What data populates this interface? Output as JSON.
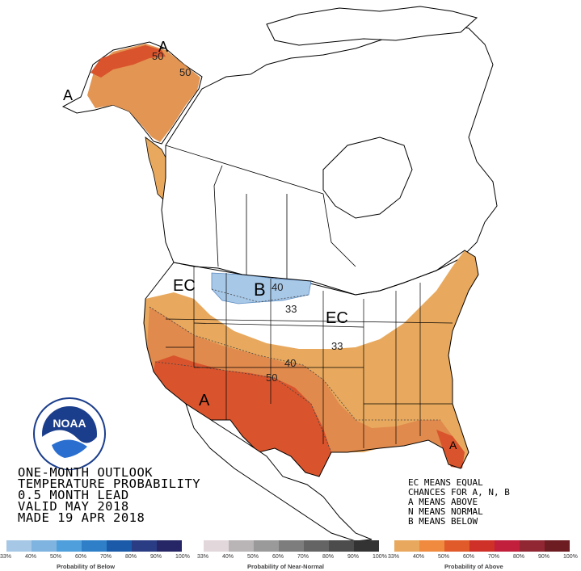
{
  "title_lines": [
    "ONE-MONTH OUTLOOK",
    "TEMPERATURE PROBABILITY",
    "0.5 MONTH LEAD",
    "VALID MAY 2018",
    "MADE 19 APR 2018"
  ],
  "notes": [
    "EC MEANS EQUAL",
    "CHANCES FOR A, N, B",
    "A MEANS ABOVE",
    "N MEANS NORMAL",
    "B MEANS BELOW"
  ],
  "map_labels": {
    "ec_west": "EC",
    "ec_central": "EC",
    "below": "B",
    "above_sw": "A",
    "above_alaska": "A",
    "above_alaska_w": "A",
    "above_fl": "A",
    "alaska_50a": "50",
    "alaska_50b": "50",
    "contour_33_n": "33",
    "contour_33_c": "33",
    "contour_40_b": "40",
    "contour_40": "40",
    "contour_50": "50"
  },
  "legend": {
    "below": {
      "title": "Probability of Below",
      "ticks": [
        "33%",
        "40%",
        "50%",
        "60%",
        "70%",
        "80%",
        "90%",
        "100%"
      ],
      "colors": [
        "#a6c8e6",
        "#7fb3e0",
        "#4f9fdc",
        "#2e7fc8",
        "#1b5aa8",
        "#2a3c84",
        "#262565"
      ]
    },
    "normal": {
      "title": "Probability of Near-Normal",
      "ticks": [
        "33%",
        "40%",
        "50%",
        "60%",
        "70%",
        "80%",
        "90%",
        "100%"
      ],
      "colors": [
        "#e2d8dc",
        "#b9b4b6",
        "#9a9a9a",
        "#7d7d7d",
        "#646464",
        "#4c4c4c",
        "#333333"
      ]
    },
    "above": {
      "title": "Probability of Above",
      "ticks": [
        "33%",
        "40%",
        "50%",
        "60%",
        "70%",
        "80%",
        "90%",
        "100%"
      ],
      "colors": [
        "#e8a95e",
        "#f08a3e",
        "#e05a2a",
        "#cf3027",
        "#c21f3c",
        "#912733",
        "#6d1c22"
      ]
    }
  },
  "logo": {
    "text": "NOAA",
    "ring_text": "NATIONAL OCEANIC AND ATMOSPHERIC ADMINISTRATION · U.S. DEPARTMENT OF COMMERCE"
  },
  "colors": {
    "above_33": "#e8a95e",
    "above_40": "#e18a4d",
    "above_50": "#d9542c",
    "below_33": "#a8c8e8"
  }
}
